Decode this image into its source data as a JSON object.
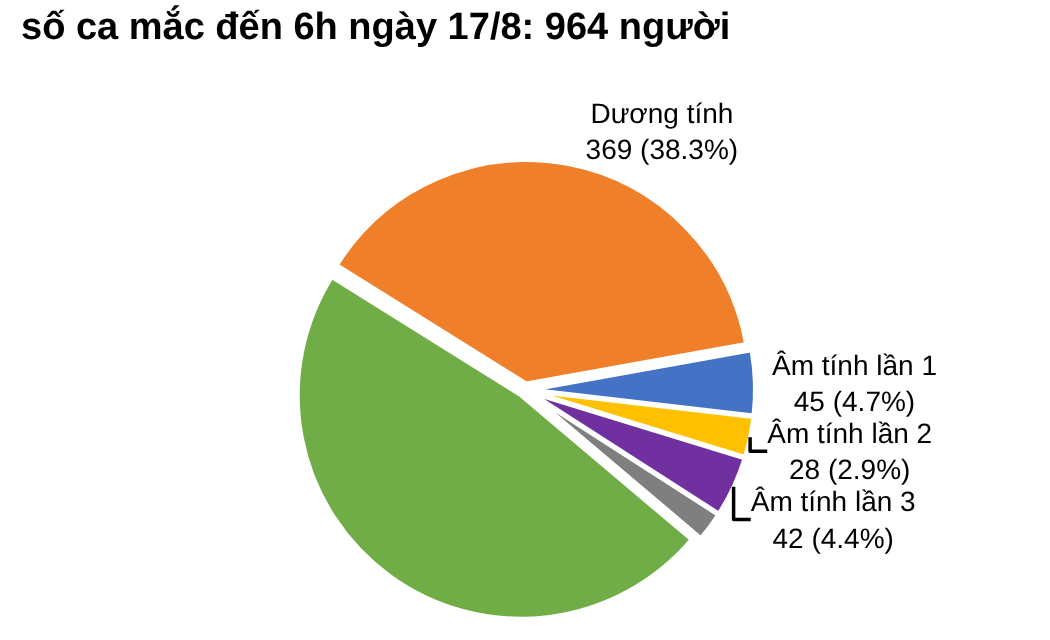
{
  "chart_data": {
    "type": "pie",
    "title": "số ca mắc đến 6h ngày 17/8: 964 người",
    "categories": [
      "Dương tính",
      "Âm tính lần 1",
      "Âm tính lần 2",
      "Âm tính lần 3",
      null,
      null
    ],
    "values": [
      369,
      45,
      28,
      42,
      20,
      460
    ],
    "value_labels": [
      "369 (38.3%)",
      "45 (4.7%)",
      "28 (2.9%)",
      "42 (4.4%)",
      null,
      null
    ],
    "colors": [
      "#f07f2a",
      "#4472c4",
      "#ffc000",
      "#7030a0",
      "#7f7f7f",
      "#70ad47"
    ],
    "legend": false
  }
}
